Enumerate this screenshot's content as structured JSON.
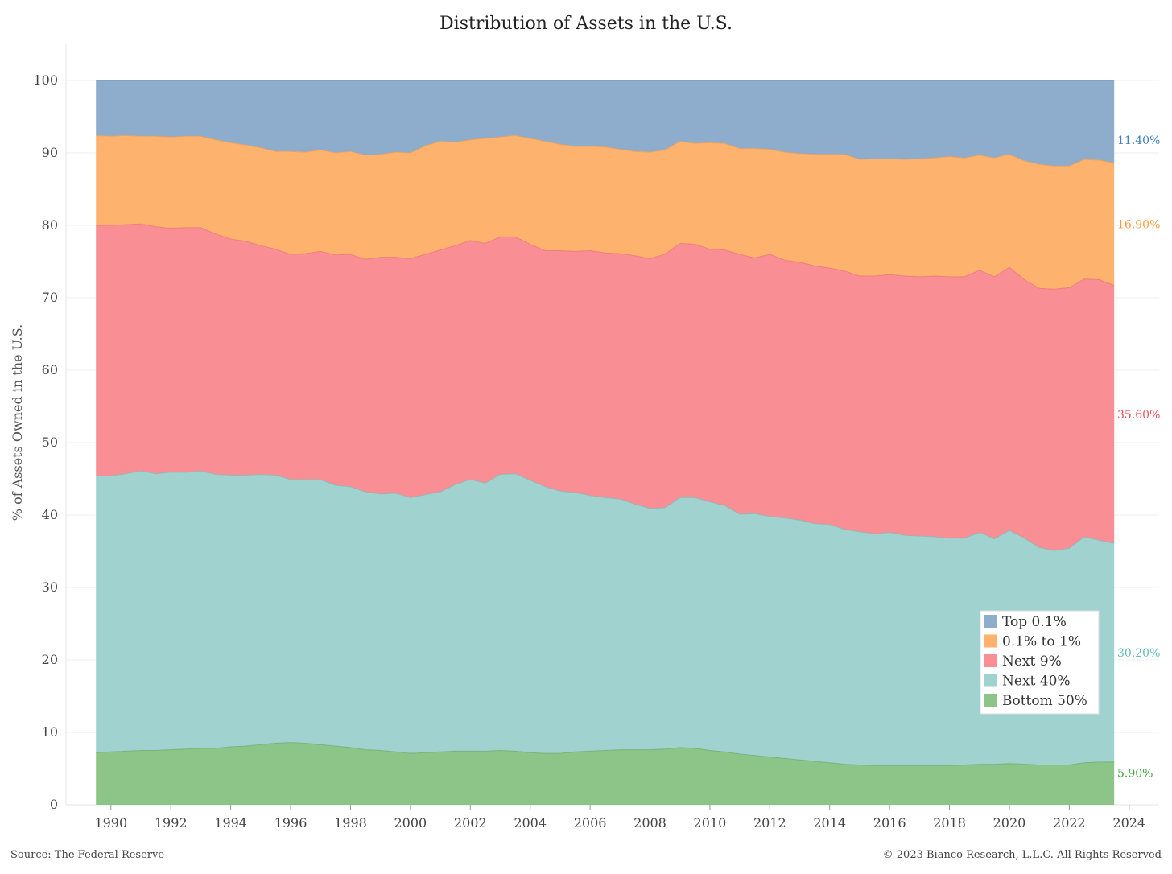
{
  "chart_data": {
    "type": "area",
    "stacked": true,
    "title": "Distribution of Assets in the U.S.",
    "ylabel": "% of Assets Owned in the U.S.",
    "xlabel": "",
    "ylim": [
      0,
      100
    ],
    "xlim": [
      1988.5,
      2025
    ],
    "yticks": [
      "0",
      "10",
      "20",
      "30",
      "40",
      "50",
      "60",
      "70",
      "80",
      "90",
      "100"
    ],
    "xticks": [
      "1990",
      "1992",
      "1994",
      "1996",
      "1998",
      "2000",
      "2002",
      "2004",
      "2006",
      "2008",
      "2010",
      "2012",
      "2014",
      "2016",
      "2018",
      "2020",
      "2022",
      "2024"
    ],
    "grid": true,
    "legend_position": "lower-right",
    "x": [
      1989.5,
      1990,
      1990.5,
      1991,
      1991.5,
      1992,
      1992.5,
      1993,
      1993.5,
      1994,
      1994.5,
      1995,
      1995.5,
      1996,
      1996.5,
      1997,
      1997.5,
      1998,
      1998.5,
      1999,
      1999.5,
      2000,
      2000.5,
      2001,
      2001.5,
      2002,
      2002.5,
      2003,
      2003.5,
      2004,
      2004.5,
      2005,
      2005.5,
      2006,
      2006.5,
      2007,
      2007.5,
      2008,
      2008.5,
      2009,
      2009.5,
      2010,
      2010.5,
      2011,
      2011.5,
      2012,
      2012.5,
      2013,
      2013.5,
      2014,
      2014.5,
      2015,
      2015.5,
      2016,
      2016.5,
      2017,
      2017.5,
      2018,
      2018.5,
      2019,
      2019.5,
      2020,
      2020.5,
      2021,
      2021.5,
      2022,
      2022.5,
      2023,
      2023.5
    ],
    "series": [
      {
        "name": "Bottom 50%",
        "color": "#8cc587",
        "end_label": "5.90%",
        "values": [
          7.2,
          7.3,
          7.4,
          7.5,
          7.5,
          7.6,
          7.7,
          7.8,
          7.8,
          8.0,
          8.1,
          8.3,
          8.5,
          8.6,
          8.5,
          8.3,
          8.1,
          7.9,
          7.6,
          7.5,
          7.3,
          7.1,
          7.2,
          7.3,
          7.4,
          7.4,
          7.4,
          7.5,
          7.4,
          7.2,
          7.1,
          7.1,
          7.3,
          7.4,
          7.5,
          7.6,
          7.6,
          7.6,
          7.7,
          7.9,
          7.8,
          7.5,
          7.3,
          7.0,
          6.8,
          6.6,
          6.4,
          6.2,
          6.0,
          5.8,
          5.6,
          5.5,
          5.4,
          5.4,
          5.4,
          5.4,
          5.4,
          5.4,
          5.5,
          5.6,
          5.6,
          5.7,
          5.6,
          5.5,
          5.5,
          5.5,
          5.8,
          5.9,
          5.9
        ]
      },
      {
        "name": "Next 40%",
        "color": "#a0d2cf",
        "end_label": "30.20%",
        "values": [
          38.2,
          38.1,
          38.3,
          38.6,
          38.2,
          38.3,
          38.2,
          38.3,
          37.8,
          37.5,
          37.4,
          37.3,
          37.0,
          36.3,
          36.4,
          36.6,
          36.0,
          36.0,
          35.6,
          35.4,
          35.7,
          35.3,
          35.6,
          35.9,
          36.8,
          37.5,
          37.0,
          38.1,
          38.3,
          37.6,
          36.8,
          36.2,
          35.8,
          35.3,
          34.9,
          34.6,
          33.9,
          33.3,
          33.3,
          34.5,
          34.6,
          34.3,
          34.0,
          33.1,
          33.4,
          33.2,
          33.2,
          33.1,
          32.8,
          32.9,
          32.4,
          32.2,
          32.0,
          32.2,
          31.8,
          31.7,
          31.6,
          31.4,
          31.3,
          32.0,
          31.1,
          32.2,
          31.2,
          30.0,
          29.6,
          29.9,
          31.2,
          30.6,
          30.2
        ]
      },
      {
        "name": "Next 9%",
        "color": "#f98f94",
        "end_label": "35.60%",
        "values": [
          34.6,
          34.6,
          34.4,
          34.1,
          34.1,
          33.7,
          33.8,
          33.6,
          33.2,
          32.6,
          32.3,
          31.6,
          31.2,
          31.1,
          31.2,
          31.5,
          31.8,
          32.1,
          32.1,
          32.7,
          32.6,
          33.0,
          33.2,
          33.4,
          33.0,
          33.0,
          33.1,
          32.8,
          32.7,
          32.6,
          32.6,
          33.2,
          33.3,
          33.8,
          33.8,
          33.9,
          34.3,
          34.5,
          35.0,
          35.1,
          35.0,
          34.9,
          35.3,
          35.9,
          35.3,
          36.2,
          35.6,
          35.6,
          35.6,
          35.4,
          35.7,
          35.3,
          35.6,
          35.6,
          35.8,
          35.8,
          36.0,
          36.1,
          36.1,
          36.2,
          36.2,
          36.3,
          35.7,
          35.8,
          36.1,
          36.0,
          35.6,
          36.0,
          35.6
        ]
      },
      {
        "name": "0.1% to 1%",
        "color": "#fdb26e",
        "end_label": "16.90%",
        "values": [
          12.4,
          12.3,
          12.3,
          12.1,
          12.5,
          12.6,
          12.6,
          12.6,
          13.0,
          13.3,
          13.3,
          13.5,
          13.5,
          14.2,
          14.0,
          14.0,
          14.1,
          14.2,
          14.4,
          14.2,
          14.5,
          14.6,
          15.0,
          15.0,
          14.3,
          13.9,
          14.5,
          13.8,
          14.0,
          14.6,
          15.1,
          14.7,
          14.5,
          14.4,
          14.6,
          14.4,
          14.4,
          14.7,
          14.4,
          14.1,
          13.9,
          14.7,
          14.7,
          14.6,
          15.1,
          14.5,
          14.9,
          15.0,
          15.4,
          15.7,
          16.1,
          16.1,
          16.2,
          16.0,
          16.1,
          16.3,
          16.3,
          16.6,
          16.4,
          15.9,
          16.4,
          15.6,
          16.4,
          17.1,
          17.0,
          16.8,
          16.5,
          16.5,
          16.9
        ]
      },
      {
        "name": "Top 0.1%",
        "color": "#8eadcd",
        "end_label": "11.40%",
        "values": [
          7.6,
          7.7,
          7.6,
          7.7,
          7.7,
          7.8,
          7.7,
          7.7,
          8.2,
          8.6,
          8.9,
          9.3,
          9.8,
          9.8,
          9.9,
          9.6,
          10.0,
          9.8,
          10.3,
          10.2,
          9.9,
          10.0,
          9.0,
          8.4,
          8.5,
          8.2,
          8.0,
          7.8,
          7.6,
          8.0,
          8.4,
          8.8,
          9.1,
          9.1,
          9.2,
          9.5,
          9.8,
          9.9,
          9.6,
          8.4,
          8.7,
          8.6,
          8.7,
          9.4,
          9.4,
          9.5,
          9.9,
          10.1,
          10.2,
          10.2,
          10.2,
          10.9,
          10.8,
          10.8,
          10.9,
          10.8,
          10.7,
          10.5,
          10.7,
          10.3,
          10.7,
          10.2,
          11.1,
          11.6,
          11.8,
          11.8,
          10.9,
          11.0,
          11.4
        ]
      }
    ],
    "legend_order": [
      "Top 0.1%",
      "0.1% to 1%",
      "Next 9%",
      "Next 40%",
      "Bottom 50%"
    ]
  },
  "footer": {
    "source": "Source: The Federal Reserve",
    "copyright": "© 2023 Bianco Research, L.L.C. All Rights Reserved"
  }
}
